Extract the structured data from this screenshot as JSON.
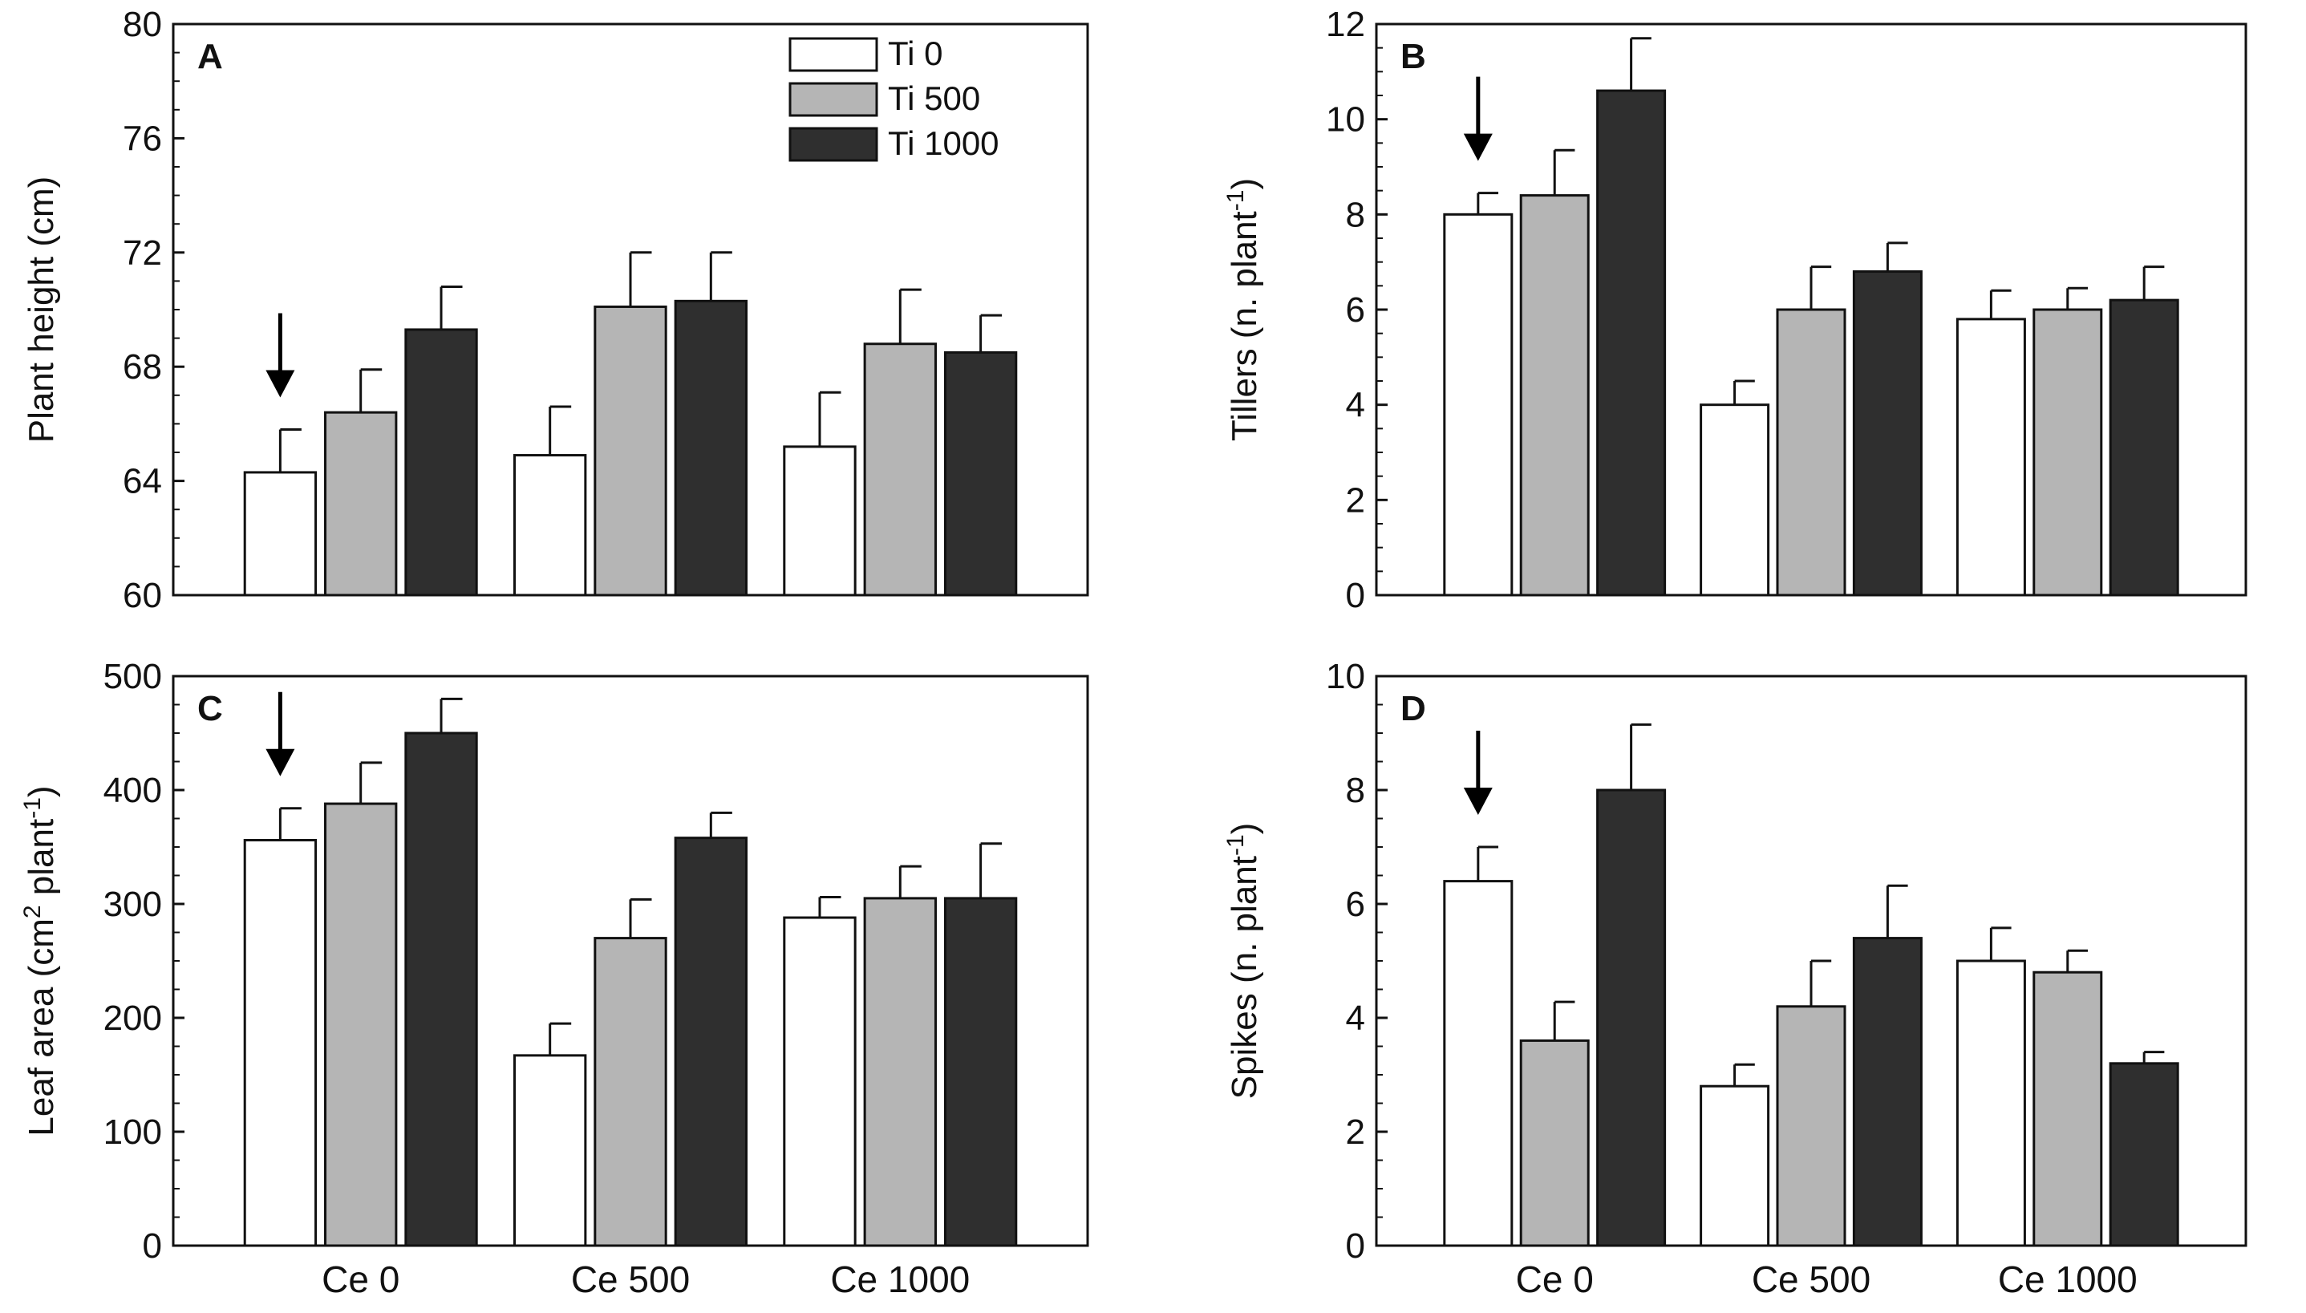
{
  "colors": {
    "series": [
      "#ffffff",
      "#b5b5b5",
      "#2f2f2f"
    ],
    "stroke": "#111111"
  },
  "legend": {
    "placement": "top-right of panel A",
    "items": [
      "Ti 0",
      "Ti 500",
      "Ti 1000"
    ]
  },
  "chart_data": [
    {
      "type": "bar",
      "panel": "A",
      "ylabel": "Plant height (cm)",
      "ylim": [
        60,
        80
      ],
      "yticks": [
        60,
        64,
        68,
        72,
        76,
        80
      ],
      "categories": [
        "Ce 0",
        "Ce 500",
        "Ce 1000"
      ],
      "series": [
        {
          "name": "Ti 0",
          "values": [
            64.3,
            64.9,
            65.2
          ],
          "errors": [
            1.5,
            1.7,
            1.9
          ]
        },
        {
          "name": "Ti 500",
          "values": [
            66.4,
            70.1,
            68.8
          ],
          "errors": [
            1.5,
            1.9,
            1.9
          ]
        },
        {
          "name": "Ti 1000",
          "values": [
            69.3,
            70.3,
            68.5
          ],
          "errors": [
            1.5,
            1.7,
            1.3
          ]
        }
      ],
      "annotations": [
        {
          "type": "arrow",
          "category": "Ce 0",
          "series": "Ti 0"
        }
      ]
    },
    {
      "type": "bar",
      "panel": "B",
      "ylabel": "Tillers (n. plant-1)",
      "ylim": [
        0,
        12
      ],
      "yticks": [
        0,
        2,
        4,
        6,
        8,
        10,
        12
      ],
      "categories": [
        "Ce 0",
        "Ce 500",
        "Ce 1000"
      ],
      "series": [
        {
          "name": "Ti 0",
          "values": [
            8.0,
            4.0,
            5.8
          ],
          "errors": [
            0.45,
            0.5,
            0.6
          ]
        },
        {
          "name": "Ti 500",
          "values": [
            8.4,
            6.0,
            6.0
          ],
          "errors": [
            0.95,
            0.9,
            0.45
          ]
        },
        {
          "name": "Ti 1000",
          "values": [
            10.6,
            6.8,
            6.2
          ],
          "errors": [
            1.1,
            0.6,
            0.7
          ]
        }
      ],
      "annotations": [
        {
          "type": "arrow",
          "category": "Ce 0",
          "series": "Ti 0"
        }
      ]
    },
    {
      "type": "bar",
      "panel": "C",
      "ylabel": "Leaf area (cm2 plant-1)",
      "ylim": [
        0,
        500
      ],
      "yticks": [
        0,
        100,
        200,
        300,
        400,
        500
      ],
      "categories": [
        "Ce 0",
        "Ce 500",
        "Ce 1000"
      ],
      "series": [
        {
          "name": "Ti 0",
          "values": [
            356,
            167,
            288
          ],
          "errors": [
            28,
            28,
            18
          ]
        },
        {
          "name": "Ti 500",
          "values": [
            388,
            270,
            305
          ],
          "errors": [
            36,
            34,
            28
          ]
        },
        {
          "name": "Ti 1000",
          "values": [
            450,
            358,
            305
          ],
          "errors": [
            30,
            22,
            48
          ]
        }
      ],
      "annotations": [
        {
          "type": "arrow",
          "category": "Ce 0",
          "series": "Ti 0"
        }
      ]
    },
    {
      "type": "bar",
      "panel": "D",
      "ylabel": "Spikes (n. plant-1)",
      "ylim": [
        0,
        10
      ],
      "yticks": [
        0,
        2,
        4,
        6,
        8,
        10
      ],
      "categories": [
        "Ce 0",
        "Ce 500",
        "Ce 1000"
      ],
      "series": [
        {
          "name": "Ti 0",
          "values": [
            6.4,
            2.8,
            5.0
          ],
          "errors": [
            0.6,
            0.38,
            0.58
          ]
        },
        {
          "name": "Ti 500",
          "values": [
            3.6,
            4.2,
            4.8
          ],
          "errors": [
            0.68,
            0.8,
            0.38
          ]
        },
        {
          "name": "Ti 1000",
          "values": [
            8.0,
            5.4,
            3.2
          ],
          "errors": [
            1.15,
            0.92,
            0.2
          ]
        }
      ],
      "annotations": [
        {
          "type": "arrow",
          "category": "Ce 0",
          "series": "Ti 0"
        }
      ]
    }
  ]
}
